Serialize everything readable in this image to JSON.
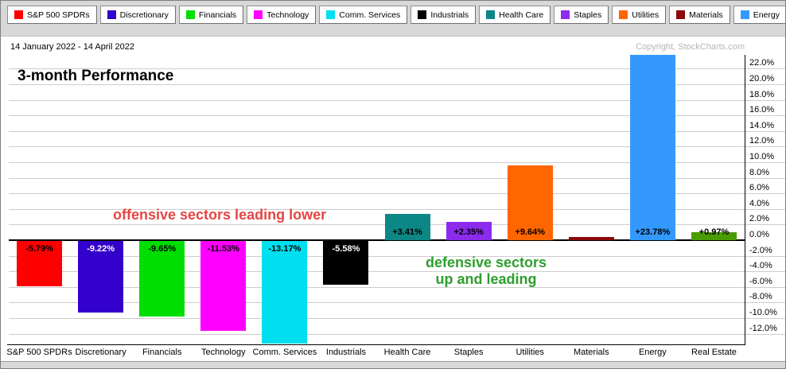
{
  "header": {
    "date_range": "14 January 2022 - 14 April 2022",
    "copyright": "Copyright, StockCharts.com",
    "title": "3-month Performance"
  },
  "legend": {
    "items": [
      {
        "label": "S&P 500 SPDRs",
        "color": "#ff0000"
      },
      {
        "label": "Discretionary",
        "color": "#3300cc"
      },
      {
        "label": "Financials",
        "color": "#00dd00"
      },
      {
        "label": "Technology",
        "color": "#ff00ff"
      },
      {
        "label": "Comm. Services",
        "color": "#00dff0"
      },
      {
        "label": "Industrials",
        "color": "#000000"
      },
      {
        "label": "Health Care",
        "color": "#0d8686"
      },
      {
        "label": "Staples",
        "color": "#8c2bee"
      },
      {
        "label": "Utilities",
        "color": "#ff6600"
      },
      {
        "label": "Materials",
        "color": "#8b0a0a"
      },
      {
        "label": "Energy",
        "color": "#3399ff"
      },
      {
        "label": "Real Estate",
        "color": "#4a9c04"
      }
    ]
  },
  "annotations": {
    "offensive": {
      "text": "offensive sectors leading lower",
      "color": "#e64545"
    },
    "defensive": {
      "line1": "defensive sectors",
      "line2": "up and leading",
      "color": "#2d9e2d"
    }
  },
  "chart_data": {
    "type": "bar",
    "title": "3-month Performance",
    "subtitle": "14 January 2022 - 14 April 2022",
    "categories": [
      "S&P 500 SPDRs",
      "Discretionary",
      "Financials",
      "Technology",
      "Comm. Services",
      "Industrials",
      "Health Care",
      "Staples",
      "Utilities",
      "Materials",
      "Energy",
      "Real Estate"
    ],
    "values": [
      -5.79,
      -9.22,
      -9.65,
      -11.53,
      -13.17,
      -5.58,
      3.41,
      2.35,
      9.64,
      0.4,
      23.78,
      0.97
    ],
    "bar_labels": [
      "-5.79%",
      "-9.22%",
      "-9.65%",
      "-11.53%",
      "-13.17%",
      "-5.58%",
      "+3.41%",
      "+2.35%",
      "+9.64%",
      "",
      "+23.78%",
      "+0.97%"
    ],
    "bar_colors": [
      "#ff0000",
      "#3300cc",
      "#00dd00",
      "#ff00ff",
      "#00dff0",
      "#000000",
      "#0d8686",
      "#8c2bee",
      "#ff6600",
      "#8b0a0a",
      "#3399ff",
      "#4a9c04"
    ],
    "label_colors": [
      "#000000",
      "#ffffff",
      "#000000",
      "#000000",
      "#000000",
      "#ffffff",
      "#000000",
      "#000000",
      "#000000",
      "",
      "#000000",
      "#000000"
    ],
    "xlabel": "",
    "ylabel": "",
    "ylim": [
      -12,
      22
    ],
    "ytick_step": 2,
    "ytick_suffix": "%",
    "grid": true,
    "legend_position": "top"
  }
}
